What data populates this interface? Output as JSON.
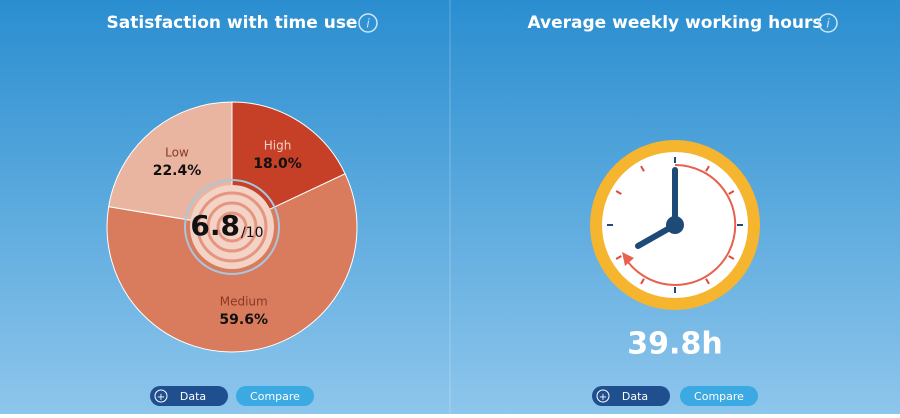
{
  "chart_data": {
    "type": "pie",
    "title": "Satisfaction with time use",
    "categories": [
      "High",
      "Medium",
      "Low"
    ],
    "values": [
      18.0,
      59.6,
      22.4
    ],
    "value_labels": [
      "18.0%",
      "59.6%",
      "22.4%"
    ],
    "colors": [
      "#c63f27",
      "#d97b5d",
      "#e9b4a0"
    ],
    "score": 6.8,
    "score_scale": "/10"
  },
  "hours_panel": {
    "title": "Average weekly working hours",
    "value": "39.8h"
  },
  "info_icon": "i",
  "buttons": [
    "Data",
    "Compare"
  ]
}
